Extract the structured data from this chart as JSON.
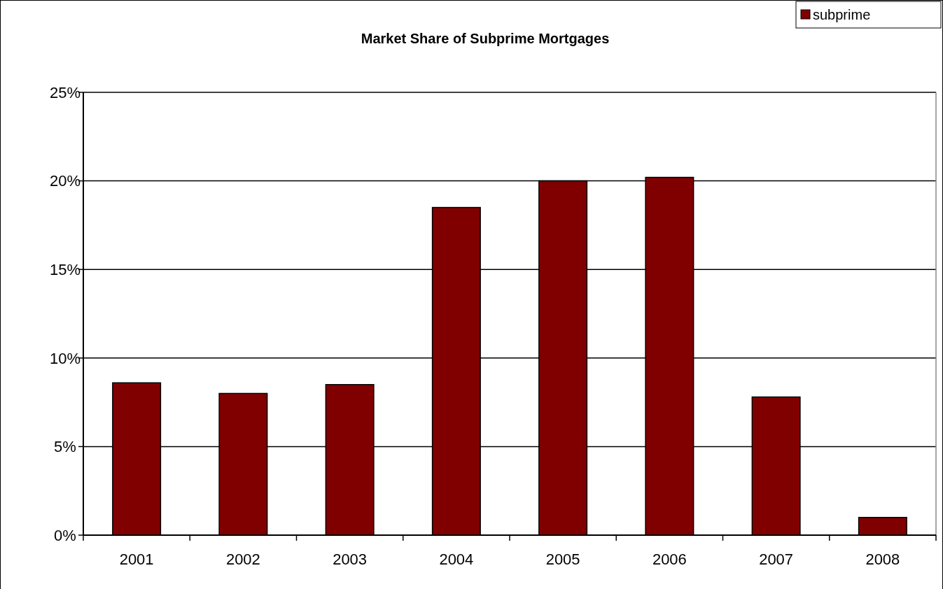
{
  "chart_data": {
    "type": "bar",
    "title": "Market Share of Subprime Mortgages",
    "categories": [
      "2001",
      "2002",
      "2003",
      "2004",
      "2005",
      "2006",
      "2007",
      "2008"
    ],
    "series": [
      {
        "name": "subprime",
        "color": "#800000",
        "values": [
          8.6,
          8.0,
          8.5,
          18.5,
          20.0,
          20.2,
          7.8,
          1.0
        ]
      }
    ],
    "ylim": [
      0,
      25
    ],
    "yticks": [
      {
        "value": 0,
        "label": "0%"
      },
      {
        "value": 5,
        "label": "5%"
      },
      {
        "value": 10,
        "label": "10%"
      },
      {
        "value": 15,
        "label": "15%"
      },
      {
        "value": 20,
        "label": "20%"
      },
      {
        "value": 25,
        "label": "25%"
      }
    ],
    "grid": "y",
    "legend": "top right"
  }
}
